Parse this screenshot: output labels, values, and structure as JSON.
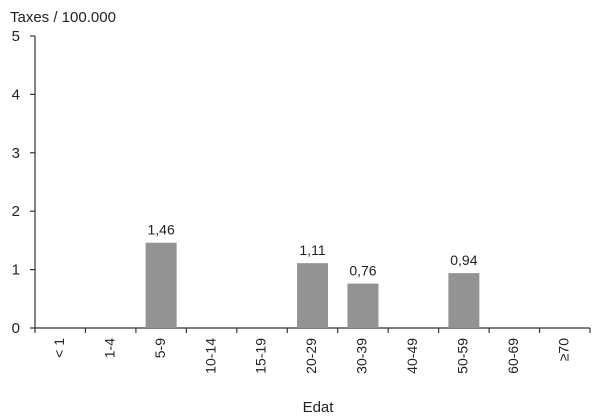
{
  "chart_data": {
    "type": "bar",
    "title": "",
    "ylabel": "Taxes / 100.000",
    "xlabel": "Edat",
    "ylim": [
      0,
      5
    ],
    "yticks": [
      0,
      1,
      2,
      3,
      4,
      5
    ],
    "grid": false,
    "legend": "none",
    "categories": [
      "< 1",
      "1-4",
      "5-9",
      "10-14",
      "15-19",
      "20-29",
      "30-39",
      "40-49",
      "50-59",
      "60-69",
      "≥70"
    ],
    "values": [
      null,
      null,
      1.46,
      null,
      null,
      1.11,
      0.76,
      null,
      0.94,
      null,
      null
    ],
    "data_labels": [
      "",
      "",
      "1,46",
      "",
      "",
      "1,11",
      "0,76",
      "",
      "0,94",
      "",
      ""
    ],
    "bar_color": "#939393",
    "axis_color": "#333333"
  }
}
